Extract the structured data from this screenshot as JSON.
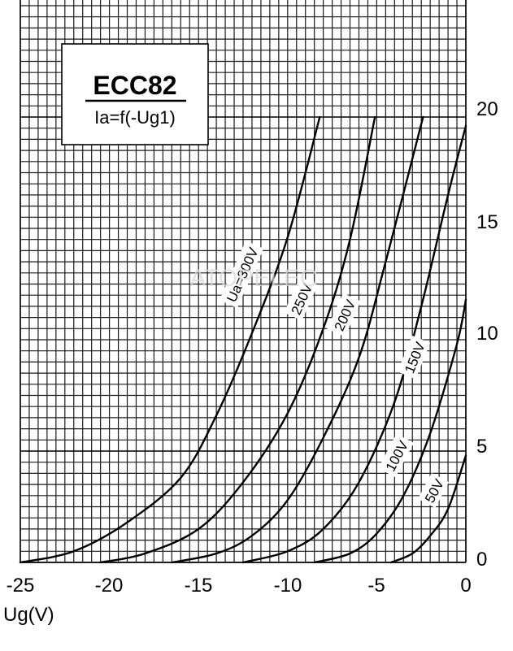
{
  "chart_data": {
    "type": "line",
    "title": "ECC82",
    "subtitle": "Ia=f(-Ug1)",
    "xlabel": "Ug(V)",
    "ylabel": "",
    "xlim": [
      -25,
      0
    ],
    "ylim": [
      0,
      20
    ],
    "x_ticks": [
      "-25",
      "-20",
      "-15",
      "-10",
      "-5",
      "0"
    ],
    "y_ticks": [
      "0",
      "5",
      "10",
      "15",
      "20"
    ],
    "grid": true,
    "series": [
      {
        "name": "Ua=300V",
        "points": [
          [
            -25.0,
            0
          ],
          [
            -22,
            0.5
          ],
          [
            -19,
            1.8
          ],
          [
            -16,
            3.8
          ],
          [
            -14,
            6.6
          ],
          [
            -12,
            10.3
          ],
          [
            -10,
            14.6
          ],
          [
            -8.2,
            20.0
          ]
        ]
      },
      {
        "name": "250V",
        "points": [
          [
            -20.5,
            0
          ],
          [
            -18,
            0.4
          ],
          [
            -15,
            1.5
          ],
          [
            -12.5,
            3.6
          ],
          [
            -10,
            6.7
          ],
          [
            -8,
            10.5
          ],
          [
            -6.5,
            14.5
          ],
          [
            -5.1,
            20.0
          ]
        ]
      },
      {
        "name": "200V",
        "points": [
          [
            -16.5,
            0
          ],
          [
            -14,
            0.4
          ],
          [
            -12,
            1.2
          ],
          [
            -10,
            2.8
          ],
          [
            -8,
            5.6
          ],
          [
            -6,
            9.2
          ],
          [
            -4.5,
            13.5
          ],
          [
            -2.4,
            20.0
          ]
        ]
      },
      {
        "name": "150V",
        "points": [
          [
            -12.5,
            0
          ],
          [
            -10,
            0.5
          ],
          [
            -8,
            1.5
          ],
          [
            -6,
            3.6
          ],
          [
            -4,
            7.2
          ],
          [
            -2.5,
            11.5
          ],
          [
            -1,
            16.5
          ],
          [
            0,
            19.6
          ]
        ]
      },
      {
        "name": "100V",
        "points": [
          [
            -8.5,
            0
          ],
          [
            -6.5,
            0.4
          ],
          [
            -5,
            1.3
          ],
          [
            -3.5,
            3.0
          ],
          [
            -2,
            5.8
          ],
          [
            -0.5,
            9.8
          ],
          [
            0,
            11.8
          ]
        ]
      },
      {
        "name": "50V",
        "points": [
          [
            -4.2,
            0
          ],
          [
            -3,
            0.4
          ],
          [
            -2,
            1.2
          ],
          [
            -1,
            2.4
          ],
          [
            0,
            4.8
          ]
        ]
      }
    ],
    "watermark": "ATOPELEC"
  }
}
